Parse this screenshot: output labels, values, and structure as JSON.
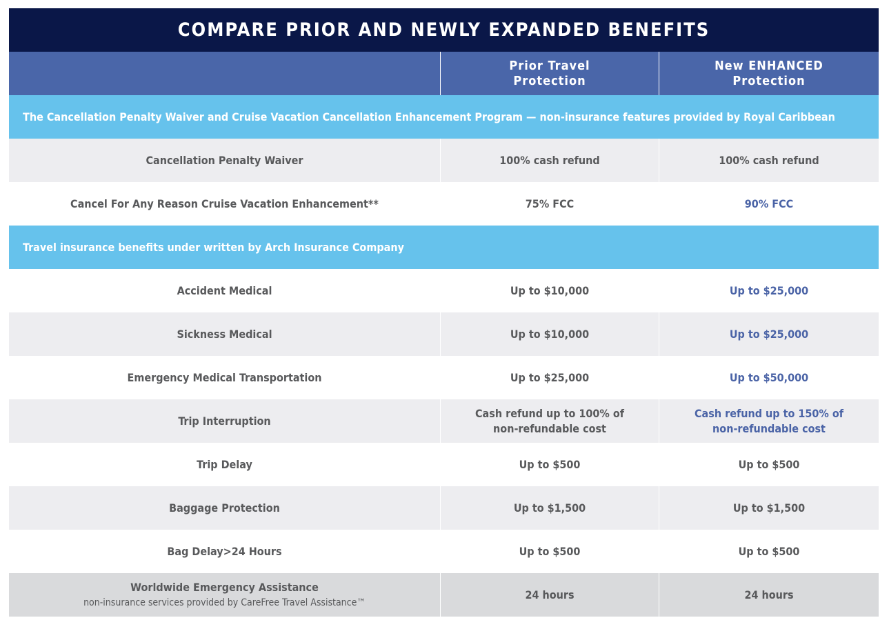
{
  "title": "COMPARE PRIOR AND NEWLY EXPANDED BENEFITS",
  "columns": [
    "",
    "Prior Travel Protection",
    "New ENHANCED Protection"
  ],
  "colors": {
    "title_bg": "#0a1748",
    "header_bg": "#4a66a9",
    "section_bg": "#66c2ec",
    "highlight_text": "#4a63a6",
    "text": "#58595b"
  },
  "rows": [
    {
      "type": "section",
      "label": "The Cancellation Penalty Waiver and Cruise Vacation Cancellation Enhancement Program — non-insurance  features provided by Royal Caribbean"
    },
    {
      "type": "data",
      "bg": "gray",
      "label": "Cancellation Penalty Waiver",
      "prior": "100% cash refund",
      "new": "100% cash refund",
      "highlight": false
    },
    {
      "type": "data",
      "bg": "white",
      "label": "Cancel For Any Reason Cruise Vacation Enhancement**",
      "prior": "75% FCC",
      "new": "90% FCC",
      "highlight": true
    },
    {
      "type": "section",
      "label": "Travel insurance benefits under written by Arch Insurance Company"
    },
    {
      "type": "data",
      "bg": "white",
      "label": "Accident Medical",
      "prior": "Up to $10,000",
      "new": "Up to $25,000",
      "highlight": true
    },
    {
      "type": "data",
      "bg": "gray",
      "label": "Sickness Medical",
      "prior": "Up to $10,000",
      "new": "Up to $25,000",
      "highlight": true
    },
    {
      "type": "data",
      "bg": "white",
      "label": "Emergency Medical Transportation",
      "prior": "Up to $25,000",
      "new": "Up to $50,000",
      "highlight": true
    },
    {
      "type": "data",
      "bg": "gray",
      "label": "Trip Interruption",
      "prior": "Cash refund up to 100% of non-refundable cost",
      "new": "Cash refund up to 150% of non-refundable cost",
      "highlight": true
    },
    {
      "type": "data",
      "bg": "white",
      "label": "Trip Delay",
      "prior": "Up to $500",
      "new": "Up to $500",
      "highlight": false
    },
    {
      "type": "data",
      "bg": "gray",
      "label": "Baggage Protection",
      "prior": "Up to $1,500",
      "new": "Up to $1,500",
      "highlight": false
    },
    {
      "type": "data",
      "bg": "white",
      "label": "Bag Delay>24 Hours",
      "prior": "Up to $500",
      "new": "Up to $500",
      "highlight": false
    },
    {
      "type": "data",
      "bg": "dark",
      "label": "Worldwide Emergency Assistance",
      "sublabel": "non-insurance services provided by CareFree Travel Assistance™",
      "prior": "24 hours",
      "new": "24 hours",
      "highlight": false
    }
  ]
}
